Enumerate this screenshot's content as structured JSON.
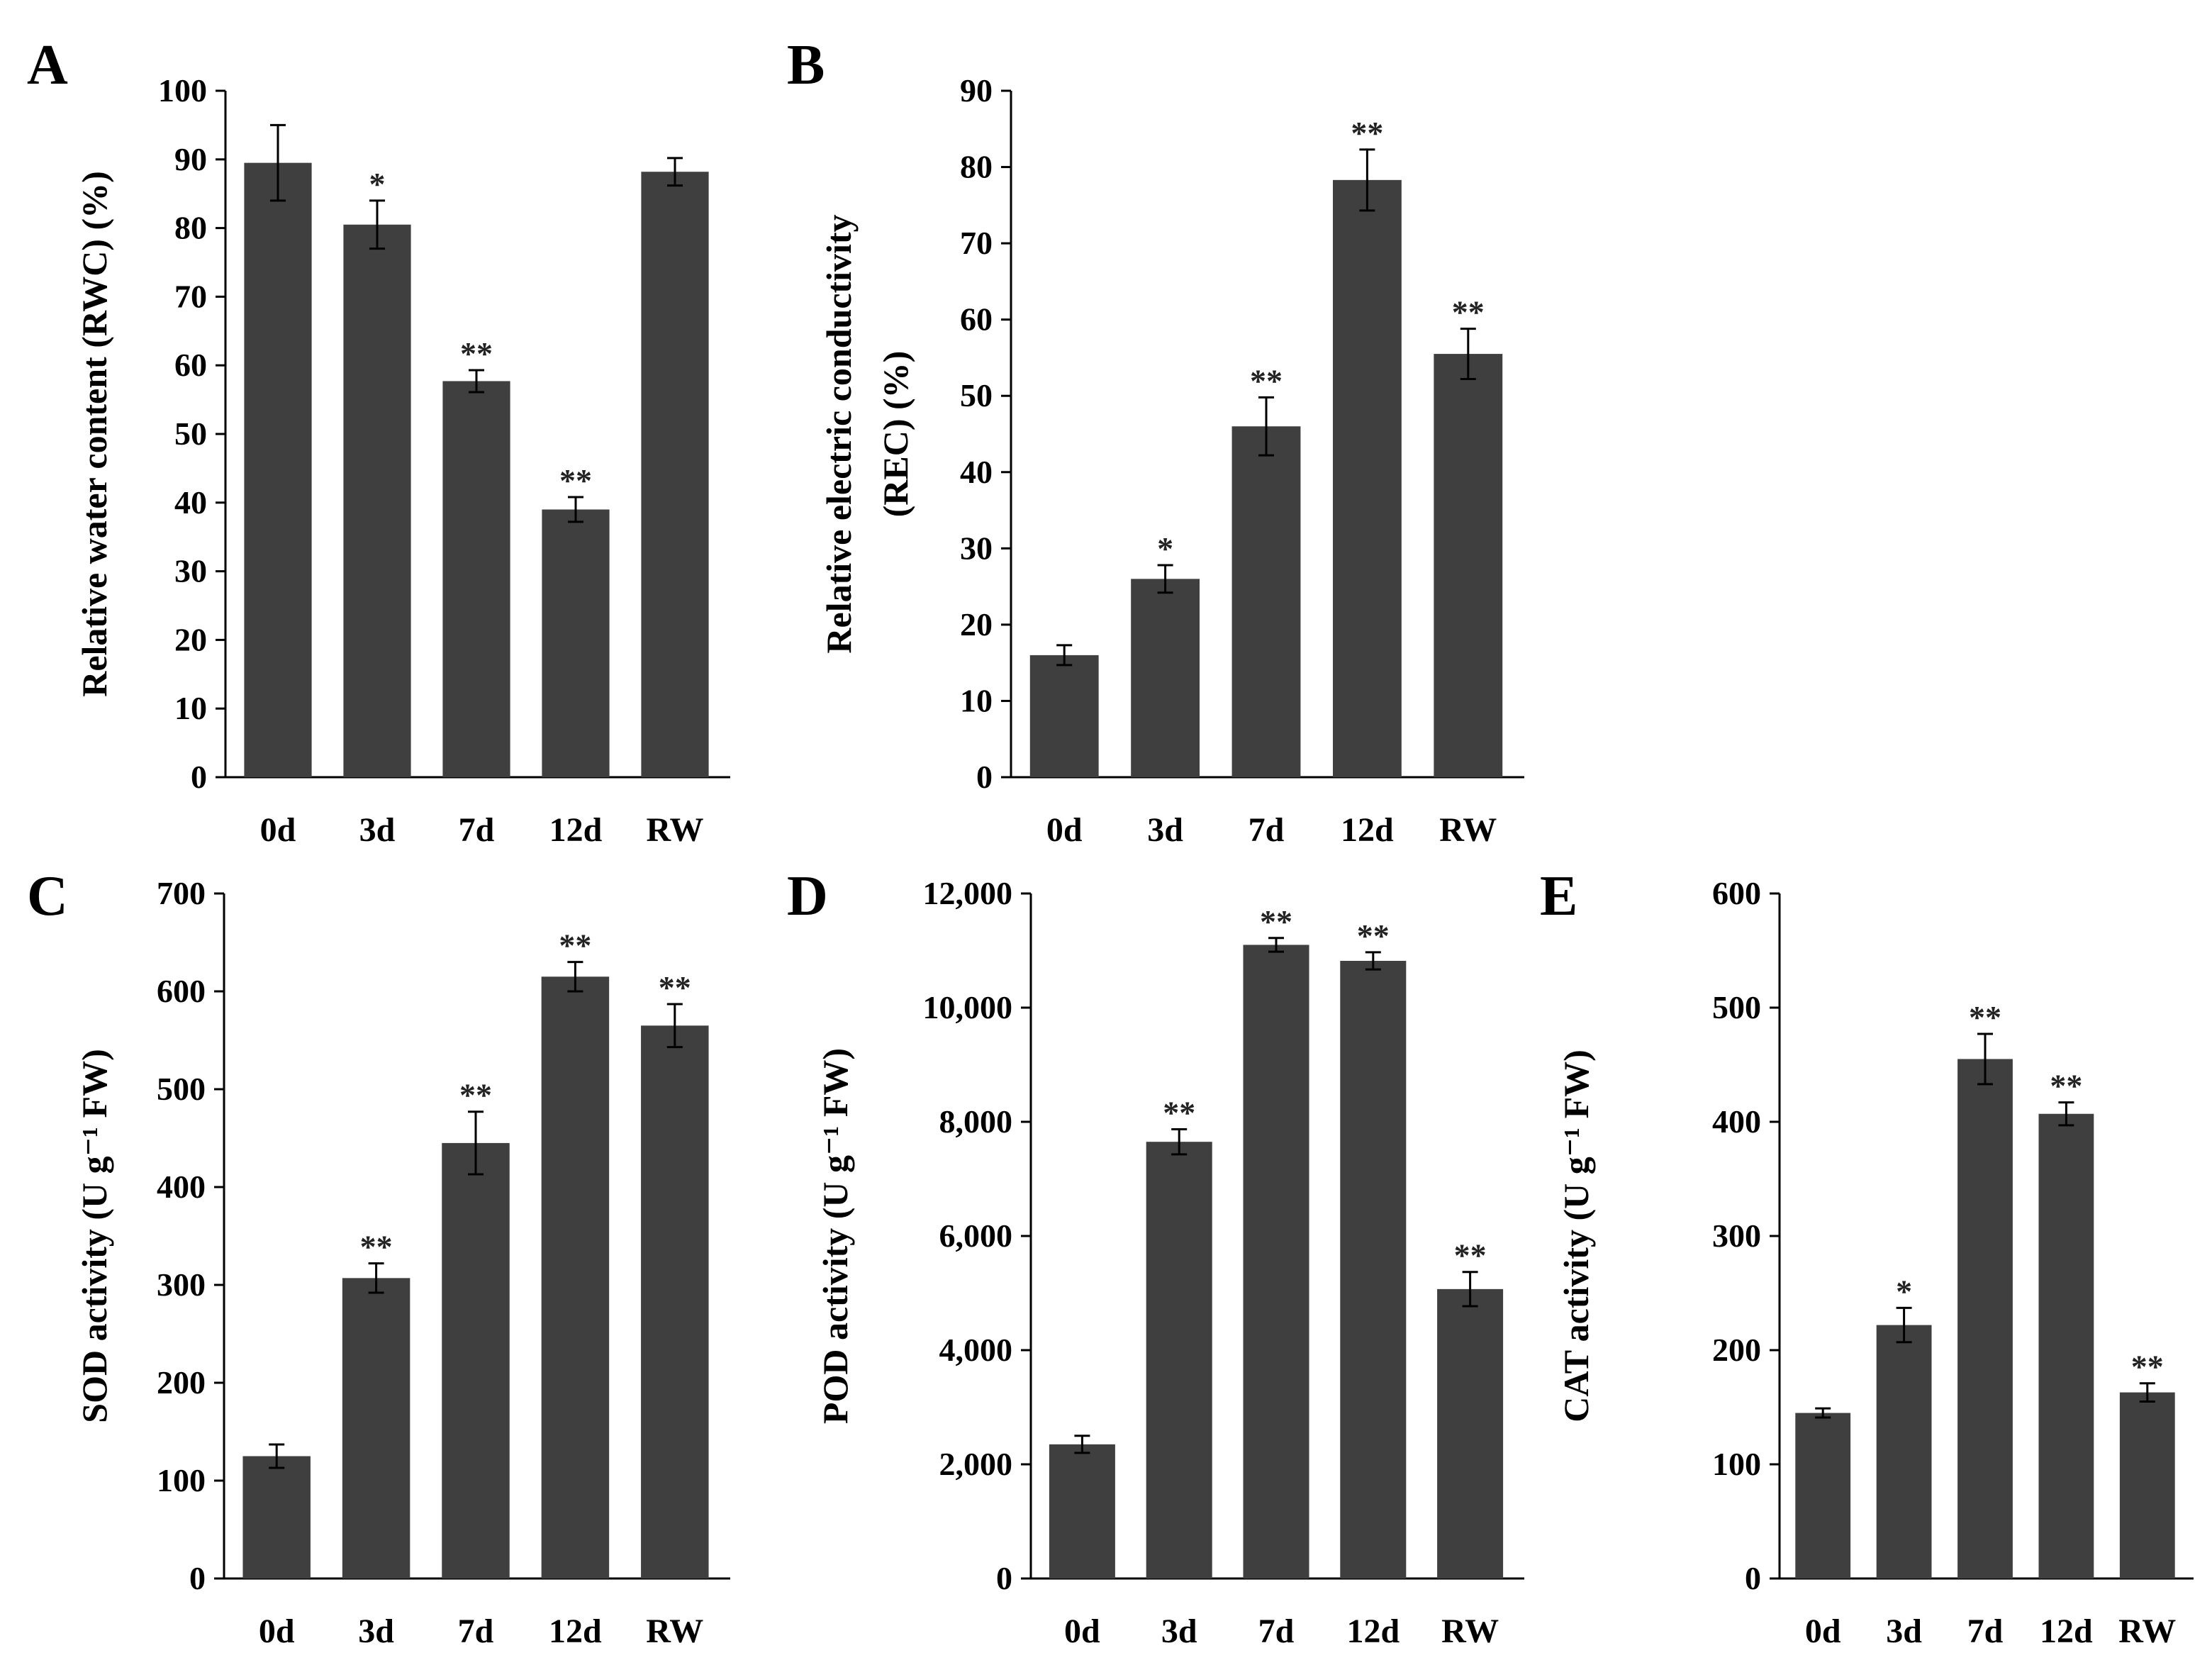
{
  "chart_data": [
    {
      "panel": "A",
      "type": "bar",
      "categories": [
        "0d",
        "3d",
        "7d",
        "12d",
        "RW"
      ],
      "values": [
        89.5,
        80.5,
        57.7,
        39.0,
        88.2
      ],
      "errors": [
        5.5,
        3.5,
        1.6,
        1.8,
        2.0
      ],
      "significance": [
        "",
        "*",
        "**",
        "**",
        ""
      ],
      "ylabel": "Relative water content (RWC) (%)",
      "ylim": [
        0,
        100
      ],
      "yticks": [
        0,
        10,
        20,
        30,
        40,
        50,
        60,
        70,
        80,
        90,
        100
      ]
    },
    {
      "panel": "B",
      "type": "bar",
      "categories": [
        "0d",
        "3d",
        "7d",
        "12d",
        "RW"
      ],
      "values": [
        16,
        26,
        46,
        78.3,
        55.5
      ],
      "errors": [
        1.3,
        1.8,
        3.8,
        4.0,
        3.3
      ],
      "significance": [
        "",
        "*",
        "**",
        "**",
        "**"
      ],
      "ylabel_lines": [
        "Relative electric conductivity",
        "(REC) (%)"
      ],
      "ylim": [
        0,
        90
      ],
      "yticks": [
        0,
        10,
        20,
        30,
        40,
        50,
        60,
        70,
        80,
        90
      ]
    },
    {
      "panel": "C",
      "type": "bar",
      "categories": [
        "0d",
        "3d",
        "7d",
        "12d",
        "RW"
      ],
      "values": [
        125,
        307,
        445,
        615,
        565
      ],
      "errors": [
        12,
        15,
        32,
        15,
        22
      ],
      "significance": [
        "",
        "**",
        "**",
        "**",
        "**"
      ],
      "ylabel": "SOD activity (U g⁻¹ FW)",
      "ylim": [
        0,
        700
      ],
      "yticks": [
        0,
        100,
        200,
        300,
        400,
        500,
        600,
        700
      ]
    },
    {
      "panel": "D",
      "type": "bar",
      "categories": [
        "0d",
        "3d",
        "7d",
        "12d",
        "RW"
      ],
      "values": [
        2350,
        7650,
        11100,
        10820,
        5070
      ],
      "errors": [
        150,
        220,
        120,
        150,
        300
      ],
      "significance": [
        "",
        "**",
        "**",
        "**",
        "**"
      ],
      "ylabel": "POD activity (U g⁻¹ FW)",
      "ylim": [
        0,
        12000
      ],
      "yticks": [
        0,
        2000,
        4000,
        6000,
        8000,
        10000,
        12000
      ],
      "ytick_labels": [
        "0",
        "2,000",
        "4,000",
        "6,000",
        "8,000",
        "10,000",
        "12,000"
      ]
    },
    {
      "panel": "E",
      "type": "bar",
      "categories": [
        "0d",
        "3d",
        "7d",
        "12d",
        "RW"
      ],
      "values": [
        145,
        222,
        455,
        407,
        163
      ],
      "errors": [
        4,
        15,
        22,
        10,
        8
      ],
      "significance": [
        "",
        "*",
        "**",
        "**",
        "**"
      ],
      "ylabel": "CAT activity (U g⁻¹ FW)",
      "ylim": [
        0,
        600
      ],
      "yticks": [
        0,
        100,
        200,
        300,
        400,
        500,
        600
      ]
    }
  ]
}
